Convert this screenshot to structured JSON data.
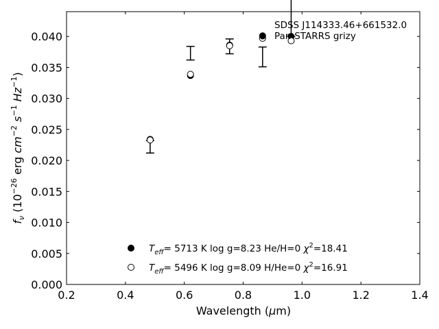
{
  "chart_data": {
    "type": "scatter",
    "xlabel": "Wavelength (μm)",
    "ylabel": "f_ν (10^-26 erg cm^-2 s^-1 Hz^-1)",
    "xlim": [
      0.2,
      1.4
    ],
    "ylim": [
      0.0,
      0.044
    ],
    "xticks": [
      "0.2",
      "0.4",
      "0.6",
      "0.8",
      "1.0",
      "1.2",
      "1.4"
    ],
    "yticks": [
      "0.000",
      "0.005",
      "0.010",
      "0.015",
      "0.020",
      "0.025",
      "0.030",
      "0.035",
      "0.040"
    ],
    "grid": false,
    "observed_label": "SDSS J114333.46+661532.0",
    "observed_sublabel": "Pan-STARRS grizy",
    "observed": [
      {
        "x": 0.484,
        "y": 0.0222,
        "yerr": 0.001
      },
      {
        "x": 0.621,
        "y": 0.0373,
        "yerr": 0.0011
      },
      {
        "x": 0.754,
        "y": 0.0384,
        "yerr": 0.0012
      },
      {
        "x": 0.866,
        "y": 0.0367,
        "yerr": 0.0016
      },
      {
        "x": 0.963,
        "y": 0.044,
        "yerr": 0.004
      }
    ],
    "series": [
      {
        "name": "5713 K  log g=8.23  He/H=0  χ²=18.41",
        "marker": "filled-circle",
        "x": [
          0.484,
          0.621,
          0.754,
          0.866,
          0.963
        ],
        "y": [
          0.0234,
          0.0337,
          0.0386,
          0.0401,
          0.04
        ]
      },
      {
        "name": "5496 K  log g=8.09  H/He=0  χ²=16.91",
        "marker": "open-circle",
        "x": [
          0.484,
          0.621,
          0.754,
          0.866,
          0.963
        ],
        "y": [
          0.0233,
          0.0339,
          0.0385,
          0.0397,
          0.0393
        ]
      }
    ],
    "legend": {
      "placement": "bottom-center",
      "entries": [
        {
          "prefix": "T",
          "sub": "eff",
          "text": "=  5713 K  log g=8.23  He/H=0  ",
          "chi": "χ",
          "sup": "2",
          "tail": "=18.41",
          "marker": "filled-circle"
        },
        {
          "prefix": "T",
          "sub": "eff",
          "text": "=  5496 K  log g=8.09  H/He=0  ",
          "chi": "χ",
          "sup": "2",
          "tail": "=16.91",
          "marker": "open-circle"
        }
      ]
    }
  }
}
